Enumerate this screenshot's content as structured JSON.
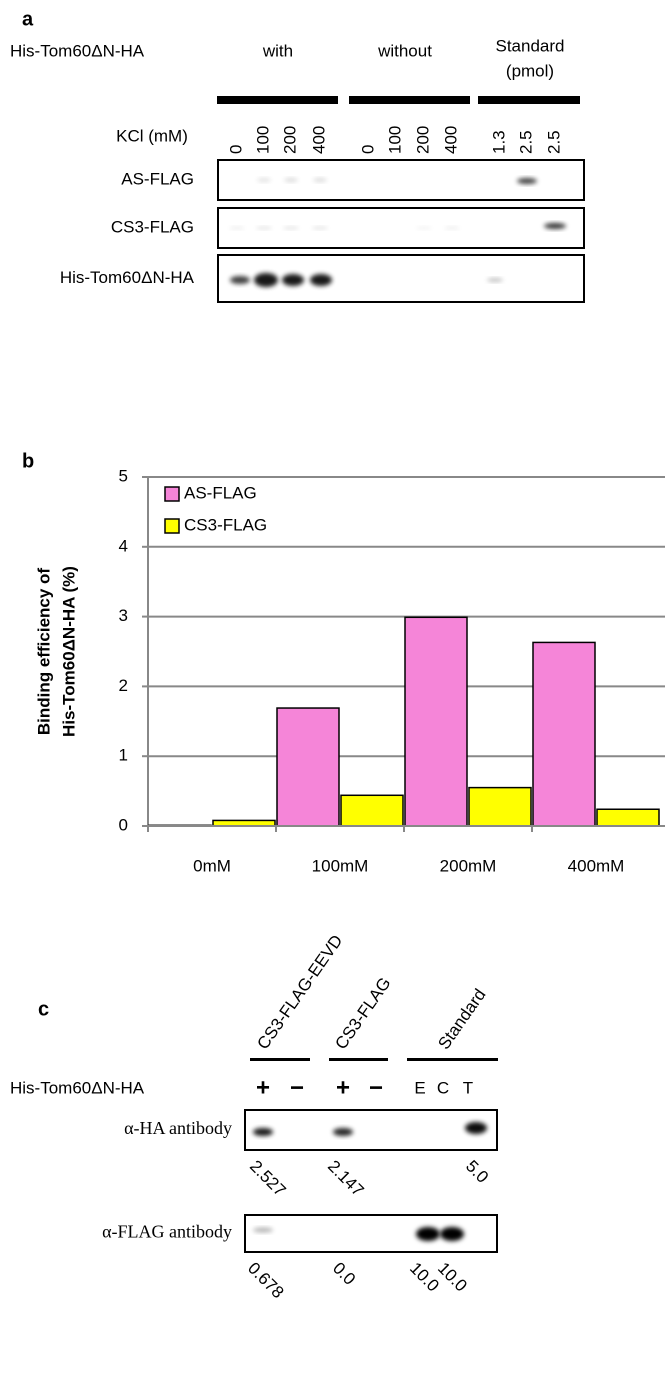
{
  "panel_a": {
    "label": "a",
    "row_title": "His-Tom60ΔN-HA",
    "groups": [
      "with",
      "without"
    ],
    "standard_header": [
      "Standard",
      "(pmol)"
    ],
    "kcl_label": "KCl (mM)",
    "lanes": [
      "0",
      "100",
      "200",
      "400",
      "0",
      "100",
      "200",
      "400",
      "1.3",
      "2.5",
      "2.5"
    ],
    "blots": [
      "AS-FLAG",
      "CS3-FLAG",
      "His-Tom60ΔN-HA"
    ]
  },
  "chart_data": {
    "type": "bar",
    "label": "b",
    "ylabel": [
      "Binding efficiency of",
      "His-Tom60ΔN-HA  (%)"
    ],
    "categories": [
      "0mM",
      "100mM",
      "200mM",
      "400mM"
    ],
    "series": [
      {
        "name": "AS-FLAG",
        "color": "#f585d8",
        "values": [
          0.01,
          1.69,
          2.99,
          2.63
        ]
      },
      {
        "name": "CS3-FLAG",
        "color": "#ffff00",
        "values": [
          0.08,
          0.44,
          0.55,
          0.24
        ]
      }
    ],
    "ylim": [
      0,
      5
    ],
    "yticks": [
      0,
      1,
      2,
      3,
      4,
      5
    ],
    "grid": true,
    "legend": "top-left"
  },
  "panel_c": {
    "label": "c",
    "groups": [
      "CS3-FLAG-EEVD",
      "CS3-FLAG",
      "Standard"
    ],
    "row_title": "His-Tom60ΔN-HA",
    "signs": [
      "+",
      "−",
      "+",
      "−",
      "E",
      "C",
      "T"
    ],
    "blots": [
      {
        "name": "α-HA antibody",
        "numbers": [
          "2.527",
          "2.147",
          "5.0"
        ]
      },
      {
        "name": "α-FLAG antibody",
        "numbers": [
          "0.678",
          "0.0",
          "10.0",
          "10.0"
        ]
      }
    ]
  }
}
